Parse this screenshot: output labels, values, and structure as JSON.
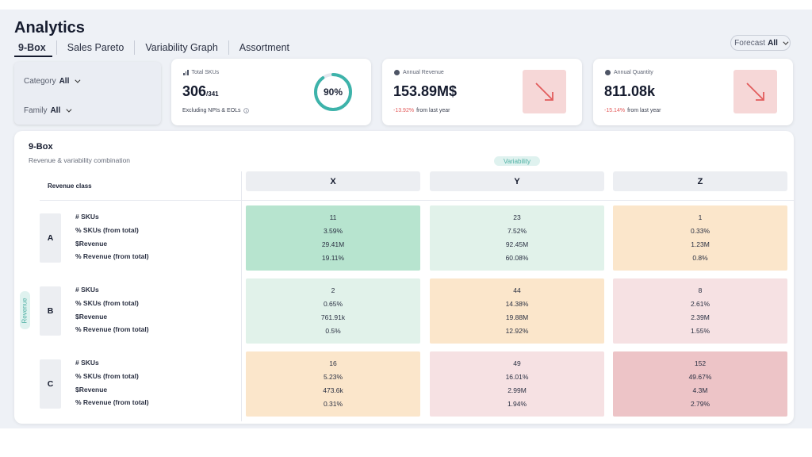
{
  "header": {
    "title": "Analytics"
  },
  "tabs": [
    "9-Box",
    "Sales Pareto",
    "Variability Graph",
    "Assortment"
  ],
  "forecast": {
    "label": "Forecast",
    "value": "All"
  },
  "filters": {
    "category": {
      "label": "Category",
      "value": "All"
    },
    "family": {
      "label": "Family",
      "value": "All"
    }
  },
  "kpis": {
    "total_skus": {
      "label": "Total SKUs",
      "value": "306",
      "total": "/341",
      "note": "Excluding NPIs & EOLs",
      "percent": "90%",
      "ring_fraction": 0.9
    },
    "annual_revenue": {
      "label": "Annual Revenue",
      "value": "153.89M$",
      "change": "-13.92%",
      "change_suffix": "from last year"
    },
    "annual_quantity": {
      "label": "Annual Quantity",
      "value": "811.08k",
      "change": "-15.14%",
      "change_suffix": "from last year"
    }
  },
  "ninebox": {
    "title": "9-Box",
    "subtitle": "Revenue & variability combination",
    "variability_label": "Variability",
    "revenue_label": "Revenue",
    "revenue_class_label": "Revenue class",
    "columns": [
      "X",
      "Y",
      "Z"
    ],
    "metric_labels": [
      "# SKUs",
      "% SKUs (from total)",
      "$Revenue",
      "% Revenue (from total)"
    ],
    "rows": [
      {
        "label": "A",
        "cells": [
          {
            "color": "green-dark",
            "values": [
              "11",
              "3.59%",
              "29.41M",
              "19.11%"
            ]
          },
          {
            "color": "green-light",
            "values": [
              "23",
              "7.52%",
              "92.45M",
              "60.08%"
            ]
          },
          {
            "color": "orange",
            "values": [
              "1",
              "0.33%",
              "1.23M",
              "0.8%"
            ]
          }
        ]
      },
      {
        "label": "B",
        "cells": [
          {
            "color": "green-light",
            "values": [
              "2",
              "0.65%",
              "761.91k",
              "0.5%"
            ]
          },
          {
            "color": "orange",
            "values": [
              "44",
              "14.38%",
              "19.88M",
              "12.92%"
            ]
          },
          {
            "color": "pink-light",
            "values": [
              "8",
              "2.61%",
              "2.39M",
              "1.55%"
            ]
          }
        ]
      },
      {
        "label": "C",
        "cells": [
          {
            "color": "orange",
            "values": [
              "16",
              "5.23%",
              "473.6k",
              "0.31%"
            ]
          },
          {
            "color": "pink-light",
            "values": [
              "49",
              "16.01%",
              "2.99M",
              "1.94%"
            ]
          },
          {
            "color": "pink-dark",
            "values": [
              "152",
              "49.67%",
              "4.3M",
              "2.79%"
            ]
          }
        ]
      }
    ]
  }
}
